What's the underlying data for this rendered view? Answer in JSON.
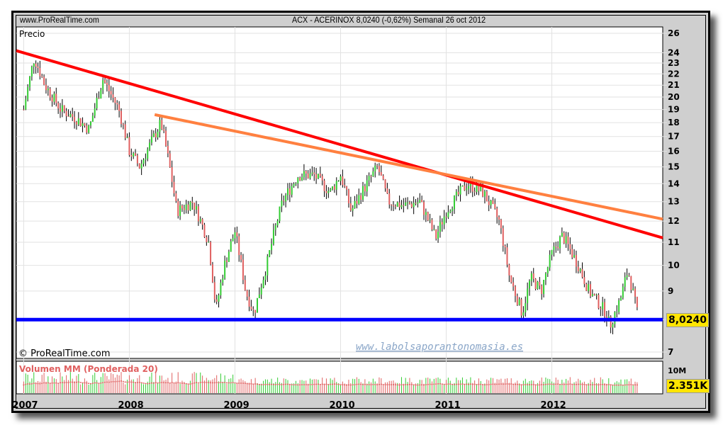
{
  "header": {
    "site": "www.ProRealTime.com",
    "title": "ACX - ACERINOX   8,0240 (-0,62%)   Semanal  26 oct 2012"
  },
  "chart_data": {
    "type": "candlestick",
    "title": "ACX - ACERINOX",
    "panel_label": "Precio",
    "copyright": "© ProRealTime.com",
    "watermark": "www.labolsaporantonomasia.es",
    "yscale": "log",
    "ylim": [
      7,
      26
    ],
    "yticks": [
      7,
      8,
      9,
      10,
      11,
      12,
      13,
      14,
      15,
      16,
      17,
      18,
      19,
      20,
      21,
      22,
      23,
      24,
      26
    ],
    "ytick_labels": [
      "7",
      "",
      "9",
      "10",
      "11",
      "12",
      "13",
      "14",
      "15",
      "16",
      "17",
      "18",
      "19",
      "20",
      "21",
      "22",
      "23",
      "24",
      "26"
    ],
    "xticks": [
      "2007",
      "2008",
      "2009",
      "2010",
      "2011",
      "2012"
    ],
    "xlim": [
      2006.93,
      2013.05
    ],
    "last_price_label": "8,0240",
    "price_path": [
      [
        2007.0,
        19
      ],
      [
        2007.1,
        23.5
      ],
      [
        2007.2,
        21
      ],
      [
        2007.35,
        19
      ],
      [
        2007.5,
        18.3
      ],
      [
        2007.62,
        17.5
      ],
      [
        2007.75,
        21.5
      ],
      [
        2007.9,
        19
      ],
      [
        2008.0,
        16
      ],
      [
        2008.1,
        15
      ],
      [
        2008.3,
        18
      ],
      [
        2008.45,
        12.5
      ],
      [
        2008.6,
        13
      ],
      [
        2008.75,
        11
      ],
      [
        2008.82,
        8.3
      ],
      [
        2008.9,
        10
      ],
      [
        2009.0,
        11.5
      ],
      [
        2009.1,
        9
      ],
      [
        2009.18,
        8.2
      ],
      [
        2009.3,
        10
      ],
      [
        2009.45,
        13
      ],
      [
        2009.6,
        14.5
      ],
      [
        2009.75,
        14.5
      ],
      [
        2009.9,
        13.5
      ],
      [
        2010.0,
        14.5
      ],
      [
        2010.1,
        12.5
      ],
      [
        2010.25,
        14
      ],
      [
        2010.35,
        15
      ],
      [
        2010.45,
        13
      ],
      [
        2010.6,
        12.8
      ],
      [
        2010.75,
        13
      ],
      [
        2010.9,
        11.2
      ],
      [
        2011.0,
        12.5
      ],
      [
        2011.2,
        14
      ],
      [
        2011.35,
        13.5
      ],
      [
        2011.5,
        12
      ],
      [
        2011.6,
        9.5
      ],
      [
        2011.72,
        8.2
      ],
      [
        2011.8,
        9.5
      ],
      [
        2011.9,
        9
      ],
      [
        2012.0,
        10.5
      ],
      [
        2012.1,
        11.3
      ],
      [
        2012.25,
        10
      ],
      [
        2012.35,
        9
      ],
      [
        2012.5,
        8.3
      ],
      [
        2012.55,
        7.8
      ],
      [
        2012.65,
        8.7
      ],
      [
        2012.72,
        9.8
      ],
      [
        2012.82,
        8.02
      ]
    ],
    "trendlines": [
      {
        "name": "red-trendline",
        "color": "#ff0000",
        "from": [
          2006.93,
          24.2
        ],
        "to": [
          2013.05,
          11.2
        ]
      },
      {
        "name": "orange-trendline",
        "color": "#ff8040",
        "from": [
          2008.24,
          18.6
        ],
        "to": [
          2013.05,
          12.1
        ]
      },
      {
        "name": "support-line",
        "color": "#0000ff",
        "from": [
          2006.93,
          8.0
        ],
        "to": [
          2013.05,
          8.0
        ]
      }
    ],
    "volume": {
      "label": "Volumen MM (Ponderada 20)",
      "axis_label": "10M",
      "last_label": "2.351K"
    }
  }
}
